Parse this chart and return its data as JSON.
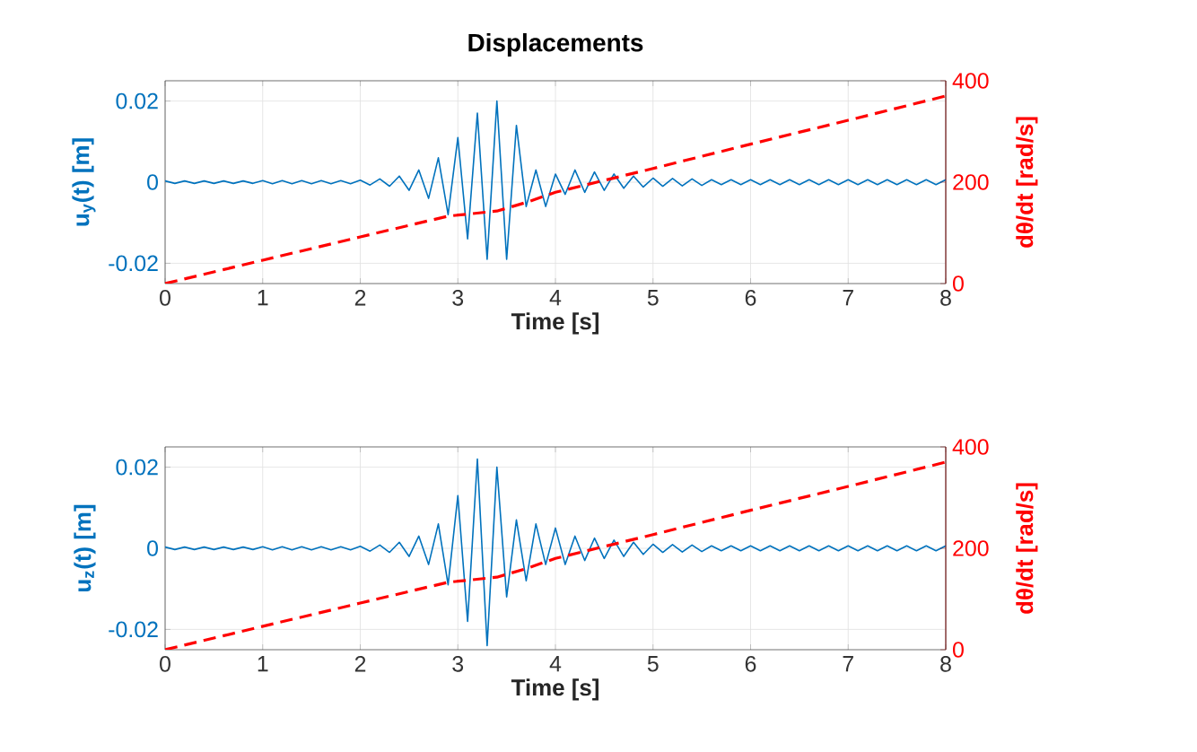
{
  "chart_data": [
    {
      "type": "line",
      "title": "**Displacements**",
      "xlabel": "Time [s]",
      "ylabel": "u$_{y}$(t) [m]",
      "y2label": "dθ/dt [rad/s]",
      "xlim": [
        0,
        8
      ],
      "xticks": [
        0,
        1,
        2,
        3,
        4,
        5,
        6,
        7,
        8
      ],
      "ylim": [
        -0.025,
        0.025
      ],
      "yticks": [
        -0.02,
        0,
        0.02
      ],
      "y2lim": [
        0,
        400
      ],
      "y2ticks": [
        0,
        200,
        400
      ],
      "grid": true,
      "series": [
        {
          "color": "#0072bd",
          "line_style": "solid",
          "x": [
            0,
            0.1,
            0.2,
            0.3,
            0.4,
            0.5,
            0.6,
            0.7,
            0.8,
            0.9,
            1.0,
            1.1,
            1.2,
            1.3,
            1.4,
            1.5,
            1.6,
            1.7,
            1.8,
            1.9,
            2.0,
            2.1,
            2.2,
            2.3,
            2.4,
            2.5,
            2.6,
            2.7,
            2.8,
            2.9,
            3.0,
            3.1,
            3.2,
            3.3,
            3.4,
            3.5,
            3.6,
            3.7,
            3.8,
            3.9,
            4.0,
            4.1,
            4.2,
            4.3,
            4.4,
            4.5,
            4.6,
            4.7,
            4.8,
            4.9,
            5.0,
            5.1,
            5.2,
            5.3,
            5.4,
            5.5,
            5.6,
            5.7,
            5.8,
            5.9,
            6.0,
            6.1,
            6.2,
            6.3,
            6.4,
            6.5,
            6.6,
            6.7,
            6.8,
            6.9,
            7.0,
            7.1,
            7.2,
            7.3,
            7.4,
            7.5,
            7.6,
            7.7,
            7.8,
            7.9,
            8.0
          ],
          "values": [
            0.0003,
            -0.0003,
            0.0003,
            -0.0003,
            0.0003,
            -0.0003,
            0.0003,
            -0.0003,
            0.0003,
            -0.0003,
            0.0004,
            -0.0004,
            0.0004,
            -0.0004,
            0.0004,
            -0.0004,
            0.0004,
            -0.0004,
            0.0004,
            -0.0004,
            0.0005,
            -0.0007,
            0.0008,
            -0.001,
            0.0015,
            -0.002,
            0.003,
            -0.004,
            0.006,
            -0.008,
            0.011,
            -0.014,
            0.017,
            -0.019,
            0.02,
            -0.019,
            0.014,
            -0.006,
            0.003,
            -0.006,
            0.002,
            -0.003,
            0.003,
            -0.0025,
            0.0025,
            -0.002,
            0.002,
            -0.0015,
            0.0015,
            -0.0012,
            0.001,
            -0.001,
            0.0009,
            -0.0009,
            0.0008,
            -0.0008,
            0.0006,
            -0.0006,
            0.0006,
            -0.0006,
            0.0006,
            -0.0006,
            0.0006,
            -0.0006,
            0.0006,
            -0.0006,
            0.0006,
            -0.0006,
            0.0006,
            -0.0006,
            0.0006,
            -0.0006,
            0.0006,
            -0.0006,
            0.0006,
            -0.0006,
            0.0006,
            -0.0006,
            0.0006,
            -0.0006,
            0.0006
          ]
        },
        {
          "color": "#ff0000",
          "line_style": "dashed",
          "axis": "y2",
          "x": [
            0,
            1,
            2,
            2.9,
            3.4,
            3.7,
            4,
            5,
            6,
            7,
            8
          ],
          "values": [
            0,
            46,
            92,
            133,
            143,
            160,
            180,
            227,
            275,
            322,
            370
          ]
        }
      ]
    },
    {
      "type": "line",
      "xlabel": "Time [s]",
      "ylabel": "u$_{z}$(t) [m]",
      "y2label": "dθ/dt [rad/s]",
      "xlim": [
        0,
        8
      ],
      "xticks": [
        0,
        1,
        2,
        3,
        4,
        5,
        6,
        7,
        8
      ],
      "ylim": [
        -0.025,
        0.025
      ],
      "yticks": [
        -0.02,
        0,
        0.02
      ],
      "y2lim": [
        0,
        400
      ],
      "y2ticks": [
        0,
        200,
        400
      ],
      "grid": true,
      "series": [
        {
          "color": "#0072bd",
          "line_style": "solid",
          "x": [
            0,
            0.1,
            0.2,
            0.3,
            0.4,
            0.5,
            0.6,
            0.7,
            0.8,
            0.9,
            1.0,
            1.1,
            1.2,
            1.3,
            1.4,
            1.5,
            1.6,
            1.7,
            1.8,
            1.9,
            2.0,
            2.1,
            2.2,
            2.3,
            2.4,
            2.5,
            2.6,
            2.7,
            2.8,
            2.9,
            3.0,
            3.1,
            3.2,
            3.3,
            3.4,
            3.5,
            3.6,
            3.7,
            3.8,
            3.9,
            4.0,
            4.1,
            4.2,
            4.3,
            4.4,
            4.5,
            4.6,
            4.7,
            4.8,
            4.9,
            5.0,
            5.1,
            5.2,
            5.3,
            5.4,
            5.5,
            5.6,
            5.7,
            5.8,
            5.9,
            6.0,
            6.1,
            6.2,
            6.3,
            6.4,
            6.5,
            6.6,
            6.7,
            6.8,
            6.9,
            7.0,
            7.1,
            7.2,
            7.3,
            7.4,
            7.5,
            7.6,
            7.7,
            7.8,
            7.9,
            8.0
          ],
          "values": [
            0.0003,
            -0.0003,
            0.0003,
            -0.0003,
            0.0003,
            -0.0003,
            0.0003,
            -0.0003,
            0.0003,
            -0.0003,
            0.0004,
            -0.0004,
            0.0004,
            -0.0004,
            0.0004,
            -0.0004,
            0.0004,
            -0.0004,
            0.0004,
            -0.0004,
            0.0005,
            -0.0007,
            0.0008,
            -0.001,
            0.0015,
            -0.002,
            0.003,
            -0.004,
            0.006,
            -0.009,
            0.013,
            -0.018,
            0.022,
            -0.024,
            0.02,
            -0.012,
            0.007,
            -0.008,
            0.006,
            -0.004,
            0.005,
            -0.004,
            0.003,
            -0.003,
            0.0025,
            -0.0025,
            0.002,
            -0.002,
            0.0015,
            -0.0015,
            0.001,
            -0.001,
            0.0009,
            -0.0009,
            0.0008,
            -0.0008,
            0.0006,
            -0.0006,
            0.0006,
            -0.0006,
            0.0006,
            -0.0006,
            0.0006,
            -0.0006,
            0.0006,
            -0.0006,
            0.0006,
            -0.0006,
            0.0006,
            -0.0006,
            0.0006,
            -0.0006,
            0.0006,
            -0.0006,
            0.0006,
            -0.0006,
            0.0006,
            -0.0006,
            0.0006,
            -0.0006,
            0.0006
          ]
        },
        {
          "color": "#ff0000",
          "line_style": "dashed",
          "axis": "y2",
          "x": [
            0,
            1,
            2,
            2.9,
            3.4,
            3.7,
            4,
            5,
            6,
            7,
            8
          ],
          "values": [
            0,
            46,
            92,
            133,
            143,
            160,
            180,
            227,
            275,
            322,
            370
          ]
        }
      ]
    }
  ]
}
